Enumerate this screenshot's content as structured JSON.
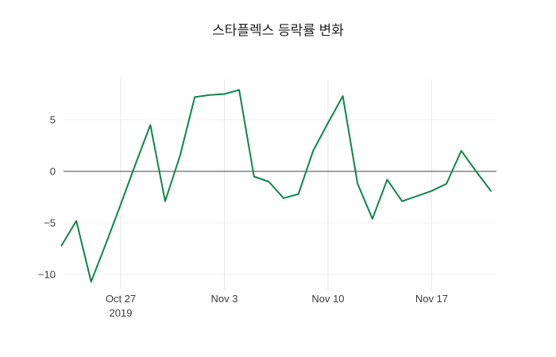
{
  "page": {
    "background": "#ffffff"
  },
  "chart_data": {
    "type": "line",
    "title": "스타플렉스 등락률 변화",
    "xlabel": "",
    "ylabel": "",
    "ylim": [
      -11.6,
      9.0
    ],
    "grid": true,
    "zero_line": true,
    "legend_position": "none",
    "line_color": "#0e8748",
    "grid_color": "#e6e6e6",
    "hgrid_color": "#f0f0f0",
    "zero_line_color": "#444444",
    "text_color": "#3d3d3d",
    "series": [
      {
        "name": "등락률",
        "color": "#0e8748",
        "x": [
          "2019-10-23",
          "2019-10-24",
          "2019-10-25",
          "2019-10-26",
          "2019-10-27",
          "2019-10-28",
          "2019-10-29",
          "2019-10-30",
          "2019-10-31",
          "2019-11-01",
          "2019-11-02",
          "2019-11-03",
          "2019-11-04",
          "2019-11-05",
          "2019-11-06",
          "2019-11-07",
          "2019-11-08",
          "2019-11-09",
          "2019-11-10",
          "2019-11-11",
          "2019-11-12",
          "2019-11-13",
          "2019-11-14",
          "2019-11-15",
          "2019-11-16",
          "2019-11-17",
          "2019-11-18",
          "2019-11-19",
          "2019-11-20",
          "2019-11-21"
        ],
        "y": [
          -7.2,
          -4.8,
          -10.7,
          -7.0,
          -3.2,
          0.7,
          4.5,
          -2.9,
          1.5,
          7.2,
          7.4,
          7.5,
          7.9,
          -0.5,
          -1.0,
          -2.6,
          -2.2,
          2.0,
          4.7,
          7.3,
          -1.2,
          -4.6,
          -0.8,
          -2.9,
          -2.4,
          -1.9,
          -1.2,
          2.0,
          0.0,
          -1.9
        ]
      }
    ],
    "x_ticks": [
      {
        "date": "2019-10-27",
        "label": "Oct 27",
        "sublabel": "2019"
      },
      {
        "date": "2019-11-03",
        "label": "Nov 3",
        "sublabel": ""
      },
      {
        "date": "2019-11-10",
        "label": "Nov 10",
        "sublabel": ""
      },
      {
        "date": "2019-11-17",
        "label": "Nov 17",
        "sublabel": ""
      }
    ],
    "y_ticks": [
      {
        "v": 5,
        "label": "5"
      },
      {
        "v": 0,
        "label": "0"
      },
      {
        "v": -5,
        "label": "−5"
      },
      {
        "v": -10,
        "label": "−10"
      }
    ]
  }
}
